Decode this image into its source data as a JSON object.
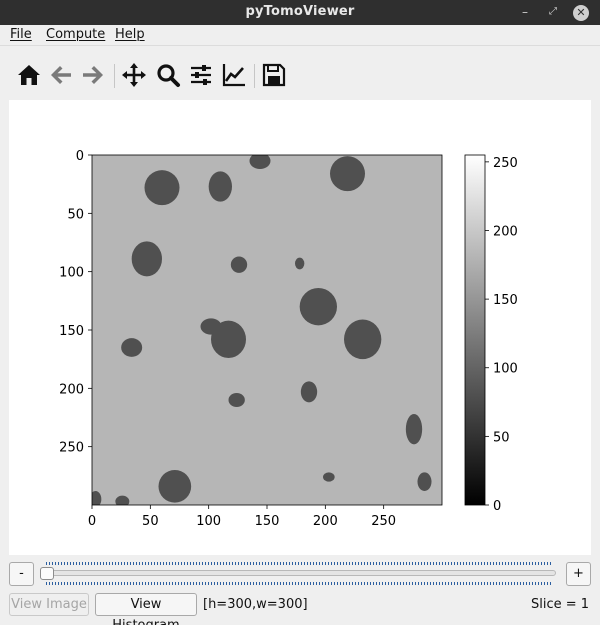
{
  "window": {
    "title": "pyTomoViewer",
    "minimize_glyph": "–",
    "maximize_glyph": "⤢",
    "close_glyph": "✕"
  },
  "menu": {
    "items": [
      "File",
      "Compute",
      "Help"
    ]
  },
  "toolbar": {
    "icons": [
      "home-icon",
      "back-arrow-icon",
      "forward-arrow-icon",
      "pan-move-icon",
      "zoom-magnifier-icon",
      "configure-subplots-icon",
      "edit-axis-lines-icon",
      "save-figure-icon"
    ]
  },
  "chart_data": {
    "type": "heatmap",
    "title": "",
    "image_size": {
      "width": 300,
      "height": 300
    },
    "colormap": "gray",
    "background_value": 182,
    "blob_value": 80,
    "x_axis": {
      "ticks": [
        0,
        50,
        100,
        150,
        200,
        250
      ],
      "range": [
        0,
        300
      ]
    },
    "y_axis": {
      "ticks": [
        0,
        50,
        100,
        150,
        200,
        250
      ],
      "range": [
        0,
        300
      ],
      "inverted": true
    },
    "colorbar": {
      "ticks": [
        0,
        50,
        100,
        150,
        200,
        250
      ],
      "range": [
        0,
        255
      ]
    },
    "blobs": [
      {
        "x": 60,
        "y": 28,
        "rx": 15,
        "ry": 15
      },
      {
        "x": 110,
        "y": 27,
        "rx": 10,
        "ry": 13
      },
      {
        "x": 144,
        "y": 5,
        "rx": 9,
        "ry": 7
      },
      {
        "x": 219,
        "y": 16,
        "rx": 15,
        "ry": 15
      },
      {
        "x": 47,
        "y": 89,
        "rx": 13,
        "ry": 15
      },
      {
        "x": 126,
        "y": 94,
        "rx": 7,
        "ry": 7
      },
      {
        "x": 178,
        "y": 93,
        "rx": 4,
        "ry": 5
      },
      {
        "x": 194,
        "y": 130,
        "rx": 16,
        "ry": 16
      },
      {
        "x": 117,
        "y": 158,
        "rx": 15,
        "ry": 16
      },
      {
        "x": 102,
        "y": 147,
        "rx": 9,
        "ry": 7
      },
      {
        "x": 232,
        "y": 158,
        "rx": 16,
        "ry": 17
      },
      {
        "x": 34,
        "y": 165,
        "rx": 9,
        "ry": 8
      },
      {
        "x": 186,
        "y": 203,
        "rx": 7,
        "ry": 9
      },
      {
        "x": 124,
        "y": 210,
        "rx": 7,
        "ry": 6
      },
      {
        "x": 276,
        "y": 235,
        "rx": 7,
        "ry": 13
      },
      {
        "x": 71,
        "y": 284,
        "rx": 14,
        "ry": 14
      },
      {
        "x": 203,
        "y": 276,
        "rx": 5,
        "ry": 4
      },
      {
        "x": 285,
        "y": 280,
        "rx": 6,
        "ry": 8
      },
      {
        "x": 3,
        "y": 295,
        "rx": 5,
        "ry": 7
      },
      {
        "x": 26,
        "y": 297,
        "rx": 6,
        "ry": 5
      }
    ]
  },
  "slice_controls": {
    "minus_label": "-",
    "plus_label": "+",
    "slider_value_fraction": 0.0
  },
  "bottom": {
    "view_image_label": "View Image",
    "view_histogram_label": "View Histogram",
    "dims_text": "[h=300,w=300]",
    "slice_text": "Slice = 1"
  }
}
